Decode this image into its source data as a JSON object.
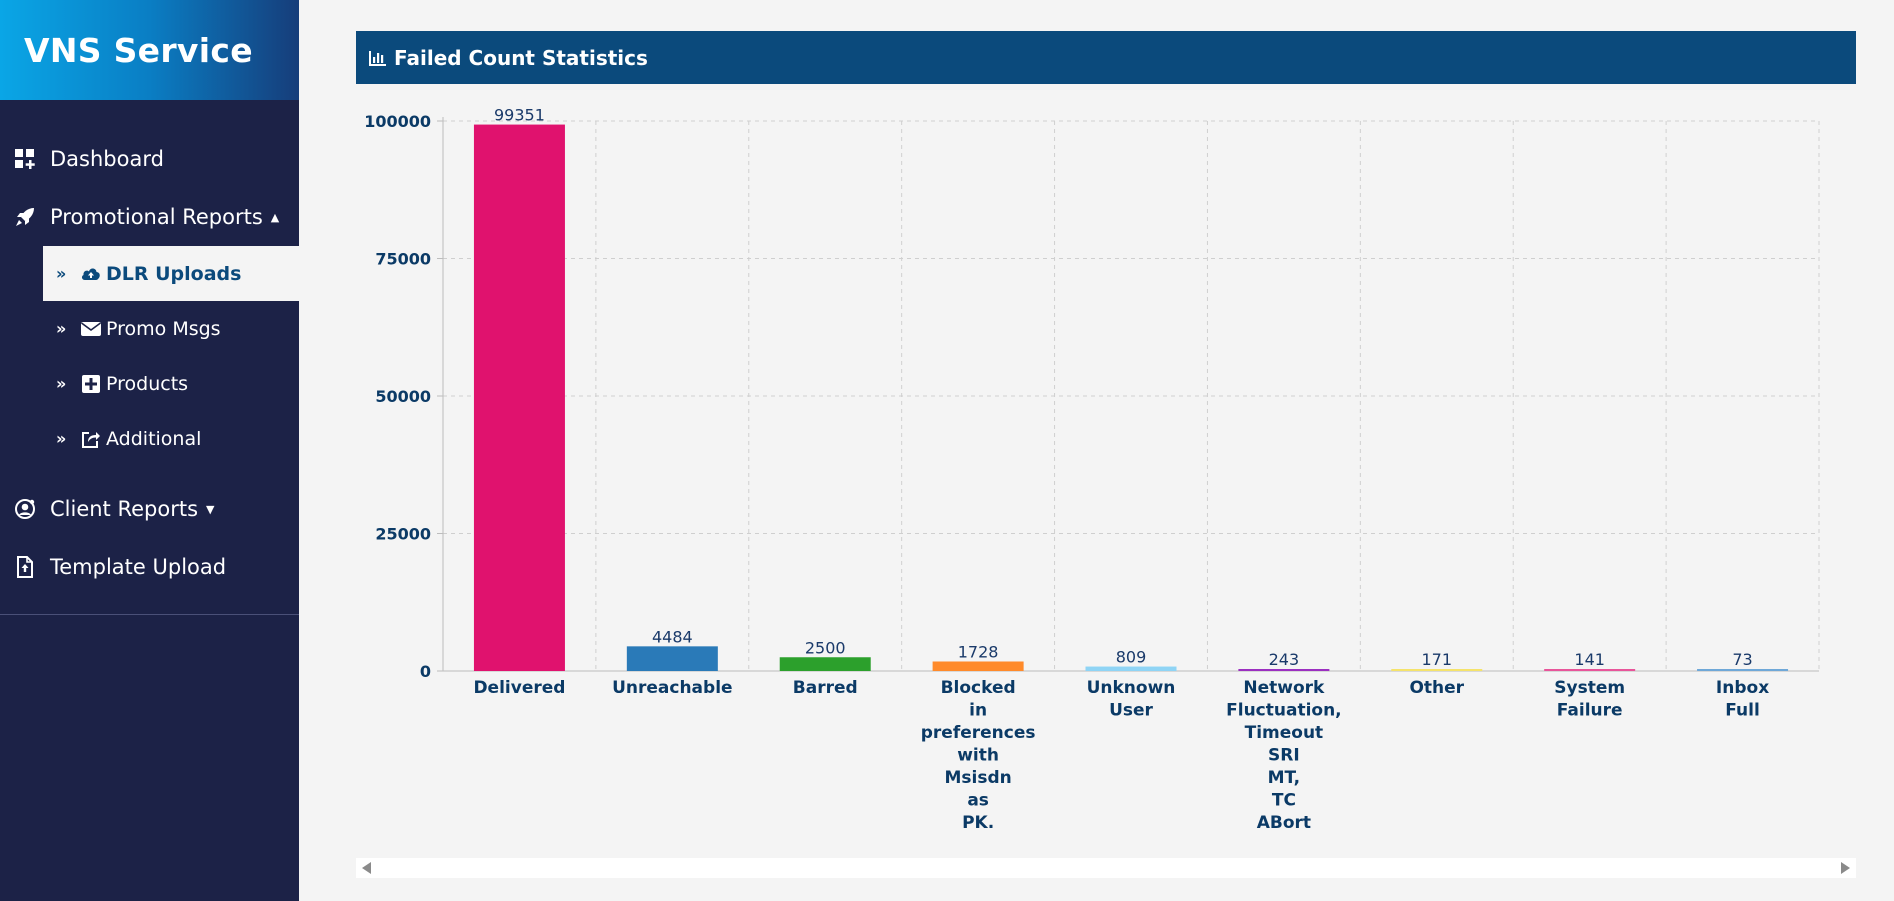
{
  "brand": {
    "title": "VNS Service"
  },
  "nav": {
    "dashboard": {
      "label": "Dashboard",
      "icon": "dashboard-icon"
    },
    "promotional": {
      "label": "Promotional Reports",
      "caret": "▲",
      "icon": "rocket-icon"
    },
    "sub": [
      {
        "label": "DLR Uploads",
        "chev": "»",
        "icon": "cloud-upload-icon",
        "active": true
      },
      {
        "label": "Promo Msgs",
        "chev": "»",
        "icon": "envelope-icon"
      },
      {
        "label": "Products",
        "chev": "»",
        "icon": "plus-square-icon"
      },
      {
        "label": "Additional",
        "chev": "»",
        "icon": "share-square-icon"
      }
    ],
    "client": {
      "label": "Client Reports",
      "caret": "▼",
      "icon": "user-circle-icon"
    },
    "template": {
      "label": "Template Upload",
      "icon": "file-upload-icon"
    }
  },
  "panel": {
    "title": "Failed Count Statistics",
    "icon": "bar-chart-icon"
  },
  "chart_data": {
    "type": "bar",
    "categories": [
      [
        "Delivered"
      ],
      [
        "Unreachable"
      ],
      [
        "Barred"
      ],
      [
        "Blocked",
        "in",
        "preferences",
        "with",
        "Msisdn",
        "as",
        "PK."
      ],
      [
        "Unknown",
        "User"
      ],
      [
        "Network",
        "Fluctuation,",
        "Timeout",
        "SRI",
        "MT,",
        "TC",
        "ABort"
      ],
      [
        "Other"
      ],
      [
        "System",
        "Failure"
      ],
      [
        "Inbox",
        "Full"
      ]
    ],
    "values": [
      99351,
      4484,
      2500,
      1728,
      809,
      243,
      171,
      141,
      73
    ],
    "colors": [
      "#e0126e",
      "#2a7ab8",
      "#2ca02c",
      "#ff8a2a",
      "#8fd4f5",
      "#9b2fc0",
      "#f5e36b",
      "#e8559a",
      "#6fa8d8"
    ],
    "yticks": [
      0,
      25000,
      50000,
      75000,
      100000
    ],
    "ylim": [
      0,
      100000
    ],
    "grid": true
  }
}
